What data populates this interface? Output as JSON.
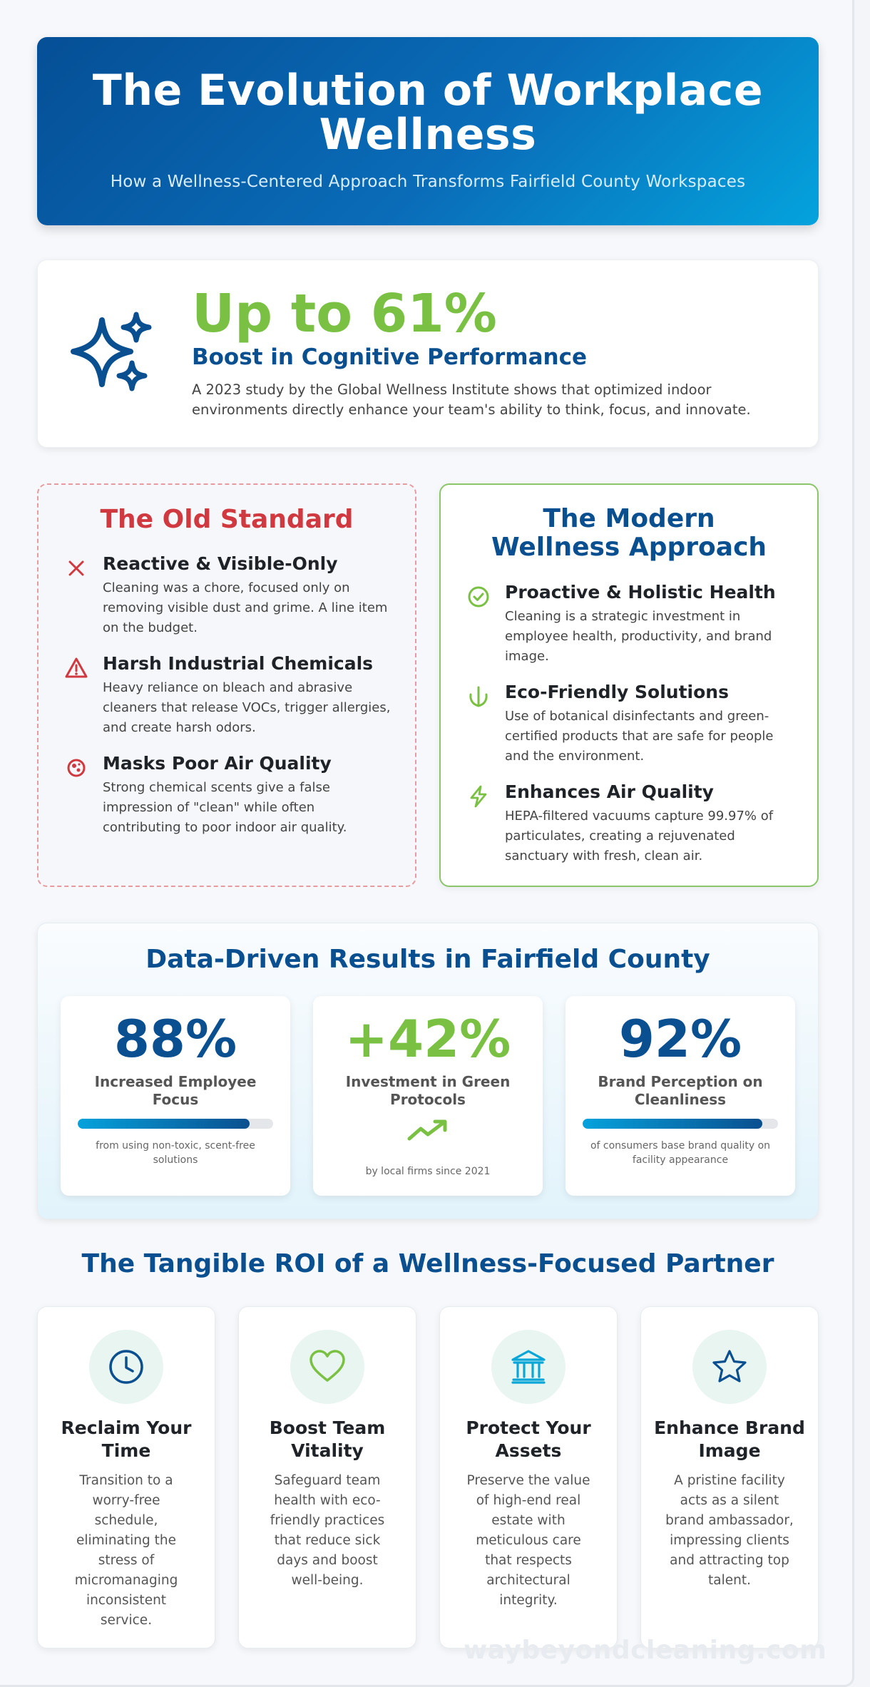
{
  "header": {
    "title": "The Evolution of Workplace Wellness",
    "subtitle": "How a Wellness-Centered Approach Transforms Fairfield County Workspaces"
  },
  "stat": {
    "icon": "sparkles-icon",
    "value": "Up to 61%",
    "headline": "Boost in Cognitive Performance",
    "description": "A 2023 study by the Global Wellness Institute shows that optimized indoor environments directly enhance your team's ability to think, focus, and innovate."
  },
  "old_standard": {
    "title": "The Old Standard",
    "color": "#d0393f",
    "items": [
      {
        "icon": "x-mark-icon",
        "title": "Reactive & Visible-Only",
        "text": "Cleaning was a chore, focused only on removing visible dust and grime. A line item on the budget."
      },
      {
        "icon": "warning-triangle-icon",
        "title": "Harsh Industrial Chemicals",
        "text": "Heavy reliance on bleach and abrasive cleaners that release VOCs, trigger allergies, and create harsh odors."
      },
      {
        "icon": "virus-icon",
        "title": "Masks Poor Air Quality",
        "text": "Strong chemical scents give a false impression of \"clean\" while often contributing to poor indoor air quality."
      }
    ]
  },
  "modern": {
    "title": "The Modern Wellness Approach",
    "color": "#7ac143",
    "items": [
      {
        "icon": "check-circle-icon",
        "title": "Proactive & Holistic Health",
        "text": "Cleaning is a strategic investment in employee health, productivity, and brand image."
      },
      {
        "icon": "leaf-icon",
        "title": "Eco-Friendly Solutions",
        "text": "Use of botanical disinfectants and green-certified products that are safe for people and the environment."
      },
      {
        "icon": "lightning-icon",
        "title": "Enhances Air Quality",
        "text": "HEPA-filtered vacuums capture 99.97% of particulates, creating a rejuvenated sanctuary with fresh, clean air."
      }
    ]
  },
  "results": {
    "title": "Data-Driven Results in Fairfield County",
    "metrics": [
      {
        "value": "88%",
        "label": "Increased Employee Focus",
        "note": "from using non-toxic, scent-free solutions",
        "progress": 0.88,
        "color": "#0a4f8f"
      },
      {
        "value": "+42%",
        "label": "Investment in Green Protocols",
        "note": "by local firms since 2021",
        "icon": "trending-up-icon",
        "color": "#7ac143"
      },
      {
        "value": "92%",
        "label": "Brand Perception on Cleanliness",
        "note": "of consumers base brand quality on facility appearance",
        "progress": 0.92,
        "color": "#0a4f8f"
      }
    ]
  },
  "roi": {
    "title": "The Tangible ROI of a Wellness-Focused Partner",
    "cards": [
      {
        "icon": "clock-icon",
        "title": "Reclaim Your Time",
        "text": "Transition to a worry-free schedule, eliminating the stress of micromanaging inconsistent service."
      },
      {
        "icon": "heart-icon",
        "title": "Boost Team Vitality",
        "text": "Safeguard team health with eco-friendly practices that reduce sick days and boost well-being."
      },
      {
        "icon": "bank-building-icon",
        "title": "Protect Your Assets",
        "text": "Preserve the value of high-end real estate with meticulous care that respects architectural integrity."
      },
      {
        "icon": "star-icon",
        "title": "Enhance Brand Image",
        "text": "A pristine facility acts as a silent brand ambassador, impressing clients and attracting top talent."
      }
    ]
  },
  "watermark": "waybeyondcleaning.com"
}
